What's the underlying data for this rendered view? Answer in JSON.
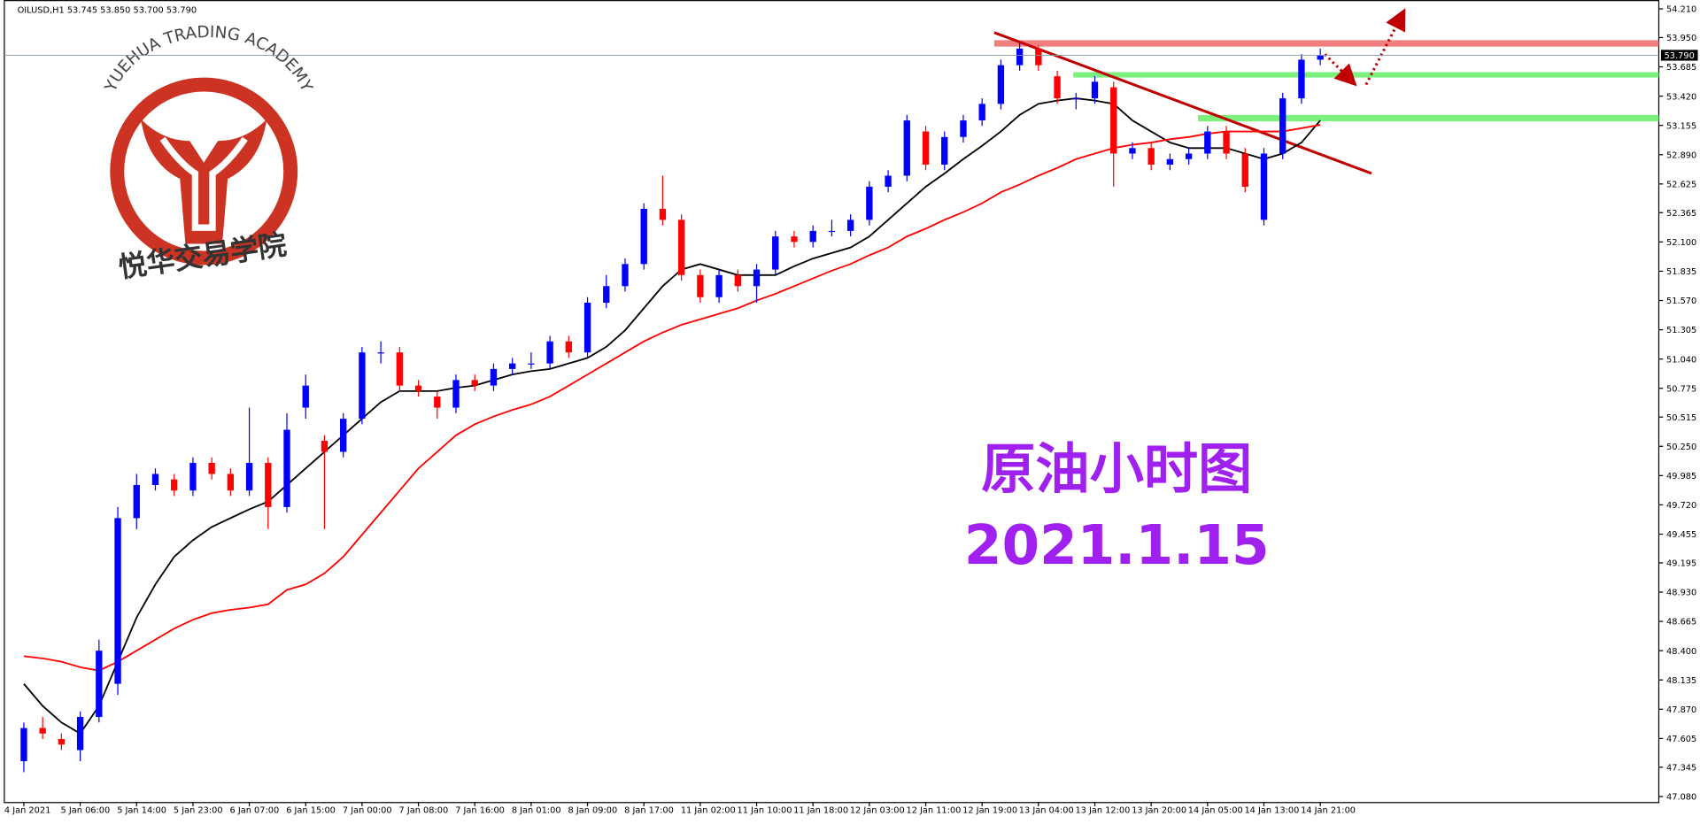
{
  "header": "OILUSD,H1  53.745 53.850 53.700 53.790",
  "watermark": {
    "title": "YUEHUA TRADING ACADEMY",
    "subtitle": "悦华交易学院"
  },
  "chart_data": {
    "type": "candlestick",
    "annotations": [
      "原油小时图",
      "2021.1.15"
    ],
    "categories": [
      "4 Jan 2021",
      null,
      null,
      "5 Jan 06:00",
      null,
      null,
      "5 Jan 14:00",
      null,
      null,
      "5 Jan 23:00",
      null,
      null,
      "6 Jan 07:00",
      null,
      null,
      "6 Jan 15:00",
      null,
      null,
      "7 Jan 00:00",
      null,
      null,
      "7 Jan 08:00",
      null,
      null,
      "7 Jan 16:00",
      null,
      null,
      "8 Jan 01:00",
      null,
      null,
      "8 Jan 09:00",
      null,
      null,
      "8 Jan 17:00",
      null,
      null,
      "11 Jan 02:00",
      null,
      null,
      "11 Jan 10:00",
      null,
      null,
      "11 Jan 18:00",
      null,
      null,
      "12 Jan 03:00",
      null,
      null,
      "12 Jan 11:00",
      null,
      null,
      "12 Jan 19:00",
      null,
      null,
      "13 Jan 04:00",
      null,
      null,
      "13 Jan 12:00",
      null,
      null,
      "13 Jan 20:00",
      null,
      null,
      "14 Jan 05:00",
      null,
      null,
      "14 Jan 13:00",
      null,
      null,
      "14 Jan 21:00"
    ],
    "open": [
      47.4,
      47.7,
      47.6,
      47.5,
      47.8,
      48.1,
      49.6,
      49.9,
      49.95,
      49.85,
      50.1,
      50.0,
      49.85,
      50.1,
      49.7,
      50.6,
      50.3,
      50.2,
      50.5,
      51.1,
      51.1,
      50.8,
      50.7,
      50.6,
      50.85,
      50.8,
      50.95,
      51.0,
      51.0,
      51.2,
      51.1,
      51.55,
      51.7,
      51.9,
      52.4,
      52.3,
      51.8,
      51.6,
      51.8,
      51.7,
      51.85,
      52.15,
      52.1,
      52.2,
      52.2,
      52.3,
      52.6,
      52.7,
      53.1,
      52.8,
      53.05,
      53.2,
      53.35,
      53.7,
      53.85,
      53.6,
      53.4,
      53.4,
      53.5,
      52.9,
      52.95,
      52.8,
      52.85,
      52.9,
      53.1,
      52.9,
      52.3,
      52.9,
      53.4,
      53.75
    ],
    "high": [
      47.75,
      47.8,
      47.65,
      47.85,
      48.5,
      49.7,
      50.0,
      50.05,
      50.0,
      50.15,
      50.15,
      50.05,
      50.6,
      50.15,
      50.55,
      50.9,
      50.35,
      50.55,
      51.15,
      51.2,
      51.15,
      50.85,
      50.75,
      50.9,
      50.9,
      51.0,
      51.05,
      51.1,
      51.25,
      51.25,
      51.6,
      51.8,
      51.95,
      52.45,
      52.7,
      52.35,
      51.85,
      51.85,
      51.85,
      51.9,
      52.2,
      52.2,
      52.25,
      52.3,
      52.35,
      52.65,
      52.75,
      53.25,
      53.15,
      53.1,
      53.25,
      53.4,
      53.75,
      53.9,
      53.88,
      53.65,
      53.45,
      53.6,
      53.55,
      53.0,
      53.0,
      52.9,
      52.95,
      53.15,
      53.15,
      52.95,
      52.95,
      53.45,
      53.8,
      53.85
    ],
    "low": [
      47.3,
      47.6,
      47.5,
      47.4,
      47.75,
      48.0,
      49.5,
      49.85,
      49.8,
      49.8,
      49.95,
      49.8,
      49.8,
      49.5,
      49.65,
      50.5,
      49.5,
      50.15,
      50.45,
      51.0,
      50.75,
      50.7,
      50.5,
      50.55,
      50.75,
      50.75,
      50.9,
      50.95,
      50.95,
      51.05,
      51.05,
      51.5,
      51.65,
      51.85,
      52.25,
      51.75,
      51.55,
      51.55,
      51.65,
      51.55,
      51.8,
      52.05,
      52.05,
      52.15,
      52.15,
      52.25,
      52.55,
      52.65,
      52.75,
      52.75,
      53.0,
      53.15,
      53.3,
      53.65,
      53.65,
      53.35,
      53.3,
      53.35,
      52.6,
      52.85,
      52.75,
      52.75,
      52.8,
      52.85,
      52.85,
      52.55,
      52.25,
      52.85,
      53.35,
      53.7
    ],
    "close": [
      47.7,
      47.65,
      47.55,
      47.8,
      48.4,
      49.6,
      49.9,
      50.0,
      49.85,
      50.1,
      50.0,
      49.85,
      50.1,
      49.7,
      50.4,
      50.8,
      50.2,
      50.5,
      51.1,
      51.1,
      50.8,
      50.75,
      50.6,
      50.85,
      50.8,
      50.95,
      51.0,
      51.0,
      51.2,
      51.1,
      51.55,
      51.7,
      51.9,
      52.4,
      52.3,
      51.8,
      51.6,
      51.8,
      51.7,
      51.85,
      52.15,
      52.1,
      52.2,
      52.2,
      52.3,
      52.6,
      52.7,
      53.2,
      52.8,
      53.05,
      53.2,
      53.35,
      53.7,
      53.85,
      53.7,
      53.4,
      53.4,
      53.55,
      52.9,
      52.95,
      52.8,
      52.85,
      52.9,
      53.1,
      52.9,
      52.6,
      52.9,
      53.4,
      53.75,
      53.79
    ],
    "up_color": "#0000ff",
    "down_color": "#ff0000",
    "ma_lines": [
      {
        "color": "#000000",
        "values": [
          48.1,
          47.9,
          47.75,
          47.65,
          47.9,
          48.3,
          48.7,
          49.0,
          49.25,
          49.4,
          49.52,
          49.6,
          49.68,
          49.75,
          49.9,
          50.05,
          50.2,
          50.35,
          50.5,
          50.65,
          50.75,
          50.75,
          50.75,
          50.78,
          50.8,
          50.85,
          50.9,
          50.93,
          50.95,
          51.0,
          51.05,
          51.15,
          51.3,
          51.5,
          51.7,
          51.85,
          51.9,
          51.85,
          51.8,
          51.8,
          51.8,
          51.88,
          51.95,
          52.0,
          52.05,
          52.15,
          52.3,
          52.45,
          52.6,
          52.72,
          52.85,
          52.97,
          53.1,
          53.25,
          53.35,
          53.38,
          53.4,
          53.38,
          53.35,
          53.2,
          53.1,
          53.0,
          52.95,
          52.95,
          52.95,
          52.9,
          52.85,
          52.9,
          53.0,
          53.2
        ]
      },
      {
        "color": "#ff0000",
        "values": [
          48.35,
          48.33,
          48.3,
          48.25,
          48.22,
          48.3,
          48.4,
          48.5,
          48.6,
          48.68,
          48.74,
          48.77,
          48.79,
          48.82,
          48.95,
          49.0,
          49.1,
          49.25,
          49.45,
          49.65,
          49.85,
          50.05,
          50.2,
          50.35,
          50.45,
          50.52,
          50.58,
          50.63,
          50.7,
          50.8,
          50.9,
          51.0,
          51.1,
          51.2,
          51.28,
          51.35,
          51.4,
          51.45,
          51.5,
          51.57,
          51.63,
          51.7,
          51.77,
          51.84,
          51.9,
          51.98,
          52.05,
          52.15,
          52.22,
          52.3,
          52.37,
          52.45,
          52.55,
          52.62,
          52.7,
          52.77,
          52.85,
          52.9,
          52.95,
          52.98,
          53.0,
          53.03,
          53.05,
          53.08,
          53.1,
          53.1,
          53.1,
          53.1,
          53.13,
          53.16
        ]
      }
    ],
    "last_price": {
      "value": 53.79,
      "label": "53.790"
    },
    "ylim": [
      47.03,
      54.29
    ],
    "yticks": [
      {
        "value": 47.08,
        "label": "47.080"
      },
      47.345,
      47.605,
      {
        "value": 47.87,
        "label": "47.870"
      },
      48.135,
      {
        "value": 48.4,
        "label": "48.400"
      },
      48.665,
      {
        "value": 48.93,
        "label": "48.930"
      },
      49.195,
      49.455,
      {
        "value": 49.72,
        "label": "49.720"
      },
      49.985,
      {
        "value": 50.25,
        "label": "50.250"
      },
      50.515,
      50.775,
      {
        "value": 51.04,
        "label": "51.040"
      },
      51.305,
      {
        "value": 51.57,
        "label": "51.570"
      },
      51.835,
      {
        "value": 52.1,
        "label": "52.100"
      },
      52.365,
      52.625,
      {
        "value": 52.89,
        "label": "52.890"
      },
      53.155,
      {
        "value": 53.42,
        "label": "53.420"
      },
      53.685,
      {
        "value": 53.95,
        "label": "53.950"
      },
      {
        "value": 54.21,
        "label": "54.210"
      }
    ]
  }
}
